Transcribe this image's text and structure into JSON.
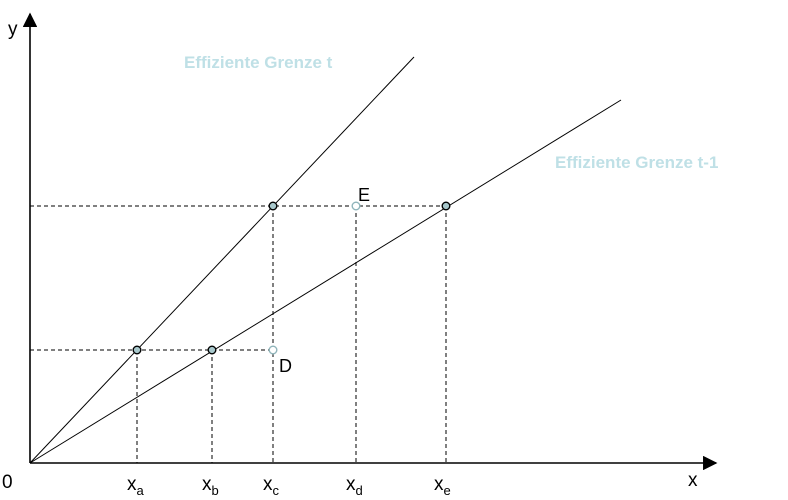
{
  "axes": {
    "y_label": "y",
    "x_label": "x",
    "origin_label": "0"
  },
  "frontiers": {
    "t": {
      "label": "Effiziente Grenze t",
      "color": "#bfe0e6"
    },
    "t_minus_1": {
      "label": "Effiziente Grenze t-1",
      "color": "#bfe0e6"
    }
  },
  "x_ticks": [
    {
      "main": "x",
      "sub": "a"
    },
    {
      "main": "x",
      "sub": "b"
    },
    {
      "main": "x",
      "sub": "c"
    },
    {
      "main": "x",
      "sub": "d"
    },
    {
      "main": "x",
      "sub": "e"
    }
  ],
  "points": {
    "D": "D",
    "E": "E"
  },
  "colors": {
    "line": "#000000",
    "point_fill": "#a8c8cc",
    "point_stroke": "#000000",
    "inefficient_point_stroke": "#8fb4ba",
    "inefficient_point_fill": "#ffffff"
  }
}
